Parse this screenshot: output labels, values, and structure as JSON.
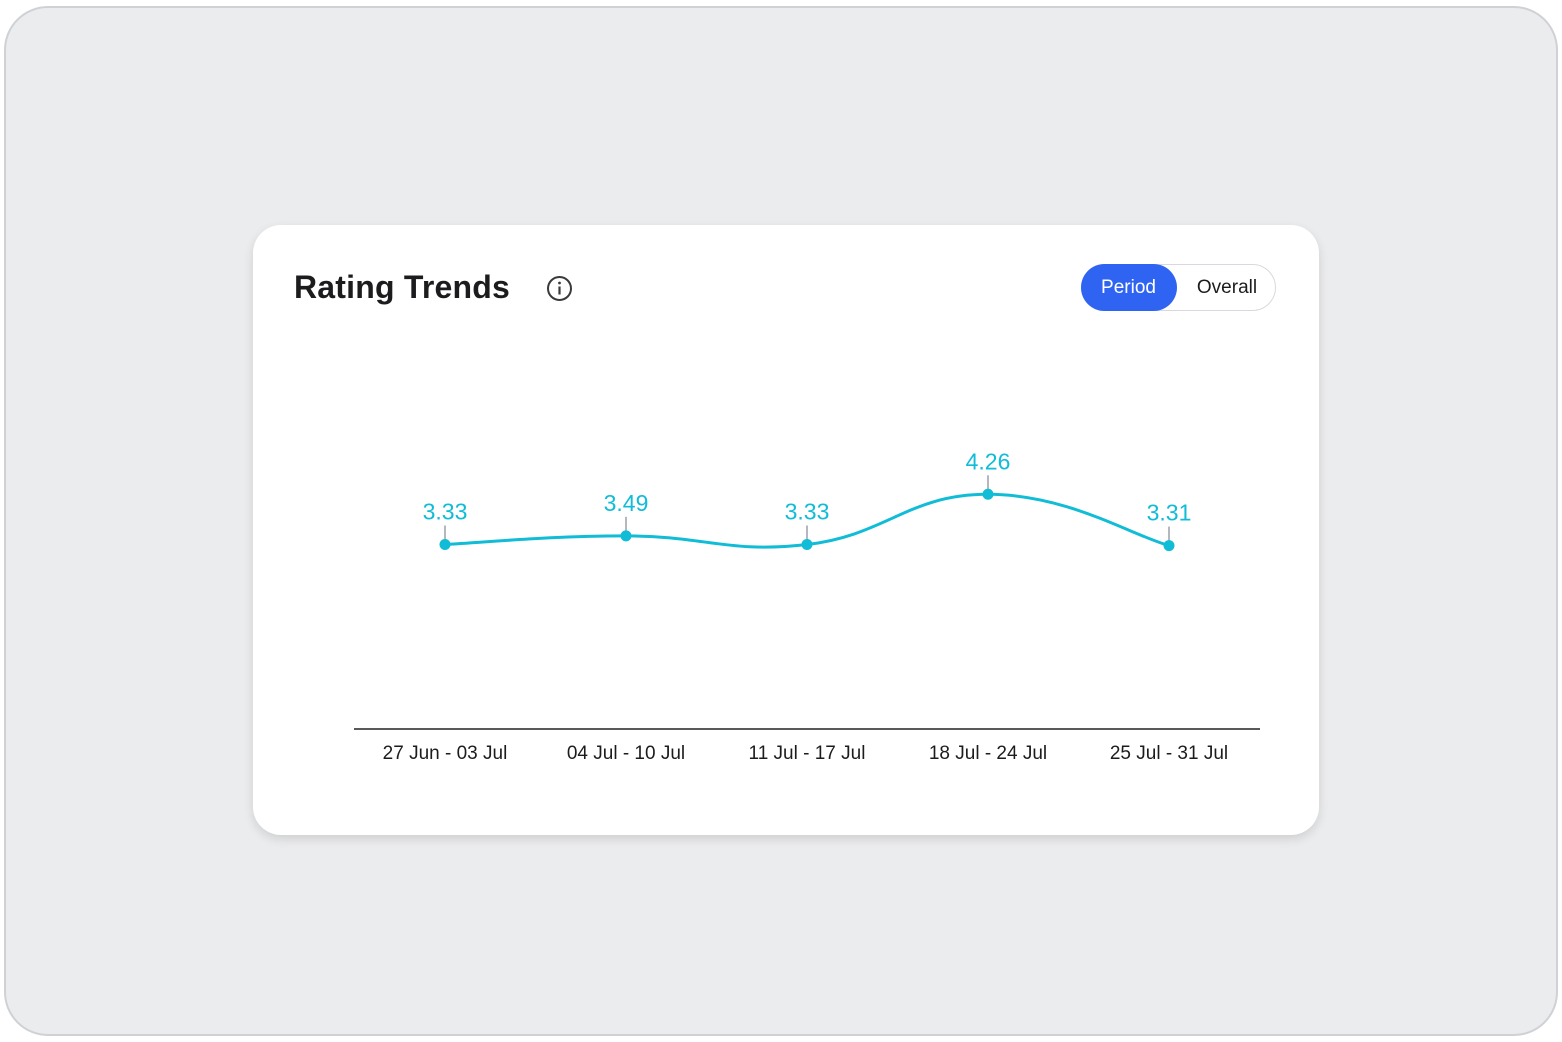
{
  "header": {
    "title": "Rating Trends",
    "info_icon": "info-circle-icon"
  },
  "toggle": {
    "options": [
      "Period",
      "Overall"
    ],
    "selected": "Period",
    "active_color": "#2f64f3"
  },
  "chart_data": {
    "type": "line",
    "categories": [
      "27 Jun - 03 Jul",
      "04 Jul - 10 Jul",
      "11 Jul - 17 Jul",
      "18 Jul - 24 Jul",
      "25 Jul - 31 Jul"
    ],
    "series": [
      {
        "values": [
          3.33,
          3.49,
          3.33,
          4.26,
          3.31
        ],
        "color": "#10bcd6"
      }
    ],
    "data_labels": [
      "3.33",
      "3.49",
      "3.33",
      "4.26",
      "3.31"
    ],
    "grid": false,
    "legend": "none",
    "axis_color": "#222222"
  }
}
